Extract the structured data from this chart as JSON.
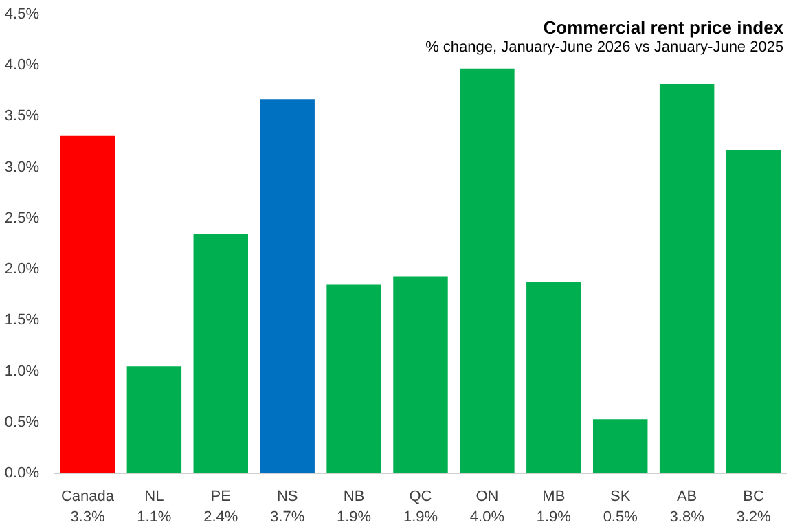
{
  "chart_data": {
    "type": "bar",
    "title": "Commercial rent price index",
    "subtitle": "% change, January-June 2026 vs January-June 2025",
    "categories": [
      "Canada",
      "NL",
      "PE",
      "NS",
      "NB",
      "QC",
      "ON",
      "MB",
      "SK",
      "AB",
      "BC"
    ],
    "values": [
      3.31,
      1.05,
      2.35,
      3.67,
      1.85,
      1.93,
      3.97,
      1.88,
      0.53,
      3.82,
      3.17
    ],
    "colors": [
      "#ff0000",
      "#00b050",
      "#00b050",
      "#0070c0",
      "#00b050",
      "#00b050",
      "#00b050",
      "#00b050",
      "#00b050",
      "#00b050",
      "#00b050"
    ],
    "value_labels": [
      "3.3%",
      "1.1%",
      "2.4%",
      "3.7%",
      "1.9%",
      "1.9%",
      "4.0%",
      "1.9%",
      "0.5%",
      "3.8%",
      "3.2%"
    ],
    "ylim": [
      0,
      4.5
    ],
    "yticks": [
      {
        "value": 0,
        "label": "0.0%"
      },
      {
        "value": 0.5,
        "label": "0.5%"
      },
      {
        "value": 1,
        "label": "1.0%"
      },
      {
        "value": 1.5,
        "label": "1.5%"
      },
      {
        "value": 2,
        "label": "2.0%"
      },
      {
        "value": 2.5,
        "label": "2.5%"
      },
      {
        "value": 3,
        "label": "3.0%"
      },
      {
        "value": 3.5,
        "label": "3.5%"
      },
      {
        "value": 4,
        "label": "4.0%"
      },
      {
        "value": 4.5,
        "label": "4.5%"
      }
    ],
    "grid": false
  }
}
